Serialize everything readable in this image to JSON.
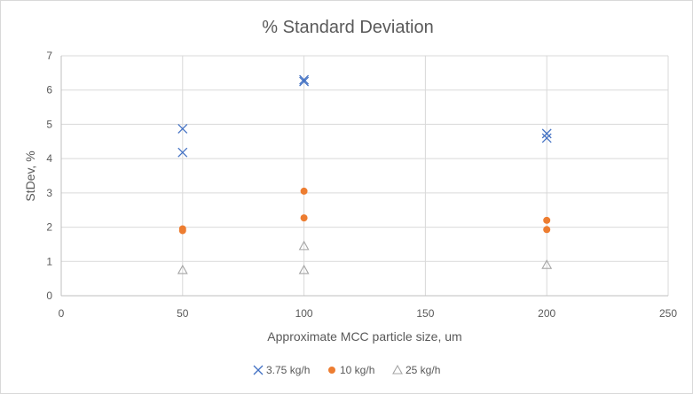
{
  "chart_data": {
    "type": "scatter",
    "title": "% Standard Deviation",
    "xlabel": "Approximate MCC particle size, um",
    "ylabel": "StDev, %",
    "xlim": [
      0,
      250
    ],
    "ylim": [
      0,
      7
    ],
    "xticks": [
      0,
      50,
      100,
      150,
      200,
      250
    ],
    "yticks": [
      0,
      1,
      2,
      3,
      4,
      5,
      6,
      7
    ],
    "grid": true,
    "legend_position": "bottom",
    "series": [
      {
        "name": "3.75 kg/h",
        "marker": "x",
        "color": "#4472C4",
        "points": [
          [
            50,
            4.87
          ],
          [
            50,
            4.18
          ],
          [
            100,
            6.3
          ],
          [
            100,
            6.25
          ],
          [
            200,
            4.73
          ],
          [
            200,
            4.6
          ]
        ]
      },
      {
        "name": "10 kg/h",
        "marker": "circle",
        "color": "#ED7D31",
        "points": [
          [
            50,
            1.95
          ],
          [
            50,
            1.9
          ],
          [
            100,
            3.05
          ],
          [
            100,
            2.27
          ],
          [
            200,
            2.2
          ],
          [
            200,
            1.93
          ]
        ]
      },
      {
        "name": "25 kg/h",
        "marker": "triangle",
        "color": "#A5A5A5",
        "points": [
          [
            50,
            0.75
          ],
          [
            100,
            1.45
          ],
          [
            100,
            0.75
          ],
          [
            200,
            0.9
          ]
        ]
      }
    ]
  }
}
